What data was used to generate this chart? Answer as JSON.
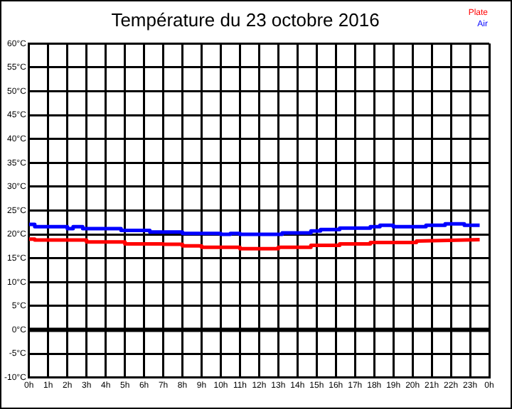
{
  "chart_data": {
    "type": "line",
    "title": "Température du 23 octobre 2016",
    "xlim": [
      "2016-10-23T00:00",
      "2016-10-24T00:00"
    ],
    "xticks": [
      {
        "value": "2016-10-23T00:00",
        "label": "0h"
      },
      {
        "value": "2016-10-23T01:00",
        "label": "1h"
      },
      {
        "value": "2016-10-23T02:00",
        "label": "2h"
      },
      {
        "value": "2016-10-23T03:00",
        "label": "3h"
      },
      {
        "value": "2016-10-23T04:00",
        "label": "4h"
      },
      {
        "value": "2016-10-23T05:00",
        "label": "5h"
      },
      {
        "value": "2016-10-23T06:00",
        "label": "6h"
      },
      {
        "value": "2016-10-23T07:00",
        "label": "7h"
      },
      {
        "value": "2016-10-23T08:00",
        "label": "8h"
      },
      {
        "value": "2016-10-23T09:00",
        "label": "9h"
      },
      {
        "value": "2016-10-23T10:00",
        "label": "10h"
      },
      {
        "value": "2016-10-23T11:00",
        "label": "11h"
      },
      {
        "value": "2016-10-23T12:00",
        "label": "12h"
      },
      {
        "value": "2016-10-23T13:00",
        "label": "13h"
      },
      {
        "value": "2016-10-23T14:00",
        "label": "14h"
      },
      {
        "value": "2016-10-23T15:00",
        "label": "15h"
      },
      {
        "value": "2016-10-23T16:00",
        "label": "16h"
      },
      {
        "value": "2016-10-23T17:00",
        "label": "17h"
      },
      {
        "value": "2016-10-23T18:00",
        "label": "18h"
      },
      {
        "value": "2016-10-23T19:00",
        "label": "19h"
      },
      {
        "value": "2016-10-23T20:00",
        "label": "20h"
      },
      {
        "value": "2016-10-23T21:00",
        "label": "21h"
      },
      {
        "value": "2016-10-23T22:00",
        "label": "22h"
      },
      {
        "value": "2016-10-23T23:00",
        "label": "23h"
      },
      {
        "value": "2016-10-24T00:00",
        "label": "0h"
      }
    ],
    "ylim": [
      -10,
      60
    ],
    "yticks": [
      {
        "value": -10,
        "label": "-10°C"
      },
      {
        "value": -5,
        "label": "-5°C"
      },
      {
        "value": 0,
        "label": "0°C"
      },
      {
        "value": 5,
        "label": "5°C"
      },
      {
        "value": 10,
        "label": "10°C"
      },
      {
        "value": 15,
        "label": "15°C"
      },
      {
        "value": 20,
        "label": "20°C"
      },
      {
        "value": 25,
        "label": "25°C"
      },
      {
        "value": 30,
        "label": "30°C"
      },
      {
        "value": 35,
        "label": "35°C"
      },
      {
        "value": 40,
        "label": "40°C"
      },
      {
        "value": 45,
        "label": "45°C"
      },
      {
        "value": 50,
        "label": "50°C"
      },
      {
        "value": 55,
        "label": "55°C"
      },
      {
        "value": 60,
        "label": "60°C"
      }
    ],
    "grid": true,
    "legend": "top right",
    "marker": "none",
    "line_style": "solid",
    "ref_lines": [
      {
        "axis": "y",
        "value": 0,
        "color": "#000000"
      }
    ],
    "series": [
      {
        "name": "Plate",
        "color": "#ff0000",
        "x": [
          "2016-10-23T00:00",
          "2016-10-23T00:18",
          "2016-10-23T00:18",
          "2016-10-23T03:00",
          "2016-10-23T03:00",
          "2016-10-23T05:00",
          "2016-10-23T05:00",
          "2016-10-23T07:00",
          "2016-10-23T07:00",
          "2016-10-23T08:00",
          "2016-10-23T08:00",
          "2016-10-23T09:00",
          "2016-10-23T09:00",
          "2016-10-23T11:00",
          "2016-10-23T11:00",
          "2016-10-23T13:00",
          "2016-10-23T13:00",
          "2016-10-23T14:42",
          "2016-10-23T14:42",
          "2016-10-23T16:12",
          "2016-10-23T16:12",
          "2016-10-23T17:48",
          "2016-10-23T17:48",
          "2016-10-23T20:12",
          "2016-10-23T20:12",
          "2016-10-23T23:30"
        ],
        "values": [
          19,
          19,
          18.8,
          18.8,
          18.4,
          18.4,
          18,
          18,
          17.9,
          17.9,
          17.6,
          17.6,
          17.3,
          17.3,
          17,
          17,
          17.3,
          17.3,
          17.7,
          17.7,
          18,
          18,
          18.3,
          18.3,
          18.6,
          18.9
        ]
      },
      {
        "name": "Air",
        "color": "#0000ff",
        "x": [
          "2016-10-23T00:00",
          "2016-10-23T00:18",
          "2016-10-23T00:18",
          "2016-10-23T02:00",
          "2016-10-23T02:00",
          "2016-10-23T02:18",
          "2016-10-23T02:18",
          "2016-10-23T02:48",
          "2016-10-23T02:48",
          "2016-10-23T04:48",
          "2016-10-23T04:48",
          "2016-10-23T06:18",
          "2016-10-23T06:18",
          "2016-10-23T08:00",
          "2016-10-23T08:00",
          "2016-10-23T10:00",
          "2016-10-23T10:00",
          "2016-10-23T10:30",
          "2016-10-23T10:30",
          "2016-10-23T11:00",
          "2016-10-23T11:00",
          "2016-10-23T13:12",
          "2016-10-23T13:12",
          "2016-10-23T14:42",
          "2016-10-23T14:42",
          "2016-10-23T15:12",
          "2016-10-23T15:12",
          "2016-10-23T16:12",
          "2016-10-23T16:12",
          "2016-10-23T17:48",
          "2016-10-23T17:48",
          "2016-10-23T18:18",
          "2016-10-23T18:18",
          "2016-10-23T19:00",
          "2016-10-23T19:00",
          "2016-10-23T20:42",
          "2016-10-23T20:42",
          "2016-10-23T21:42",
          "2016-10-23T21:42",
          "2016-10-23T22:42",
          "2016-10-23T22:42",
          "2016-10-23T23:30"
        ],
        "values": [
          22.1,
          22.1,
          21.6,
          21.6,
          21.2,
          21.2,
          21.6,
          21.6,
          21.2,
          21.2,
          20.8,
          20.8,
          20.5,
          20.5,
          20.2,
          20.2,
          20,
          20,
          20.2,
          20.2,
          20,
          20,
          20.3,
          20.3,
          20.7,
          20.7,
          21,
          21,
          21.3,
          21.3,
          21.6,
          21.6,
          21.9,
          21.9,
          21.6,
          21.6,
          21.9,
          21.9,
          22.2,
          22.2,
          21.9,
          21.9
        ]
      }
    ]
  }
}
